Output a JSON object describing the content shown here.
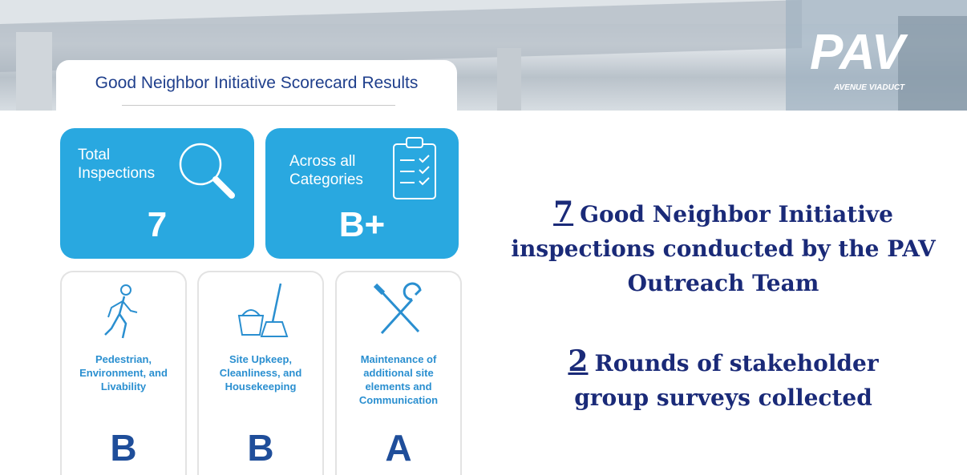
{
  "header": {
    "logo": "PAV",
    "logo_subtitle": "AVENUE VIADUCT",
    "title": "Good Neighbor Initiative Scorecard Results"
  },
  "tiles": [
    {
      "label": "Total Inspections",
      "value": 7
    },
    {
      "label": "Across all Categories",
      "value": "B+"
    }
  ],
  "categories": [
    {
      "label": "Pedestrian, Environment, and Livability",
      "grade": "B"
    },
    {
      "label": "Site Upkeep, Cleanliness, and Housekeeping",
      "grade": "B"
    },
    {
      "label": "Maintenance of additional site elements and Communication",
      "grade": "A"
    }
  ],
  "stats": [
    {
      "number": 7,
      "text": "Good Neighbor Initiative inspections conducted by the PAV Outreach Team"
    },
    {
      "number": 2,
      "text": "Rounds of stakeholder group surveys collected"
    }
  ]
}
